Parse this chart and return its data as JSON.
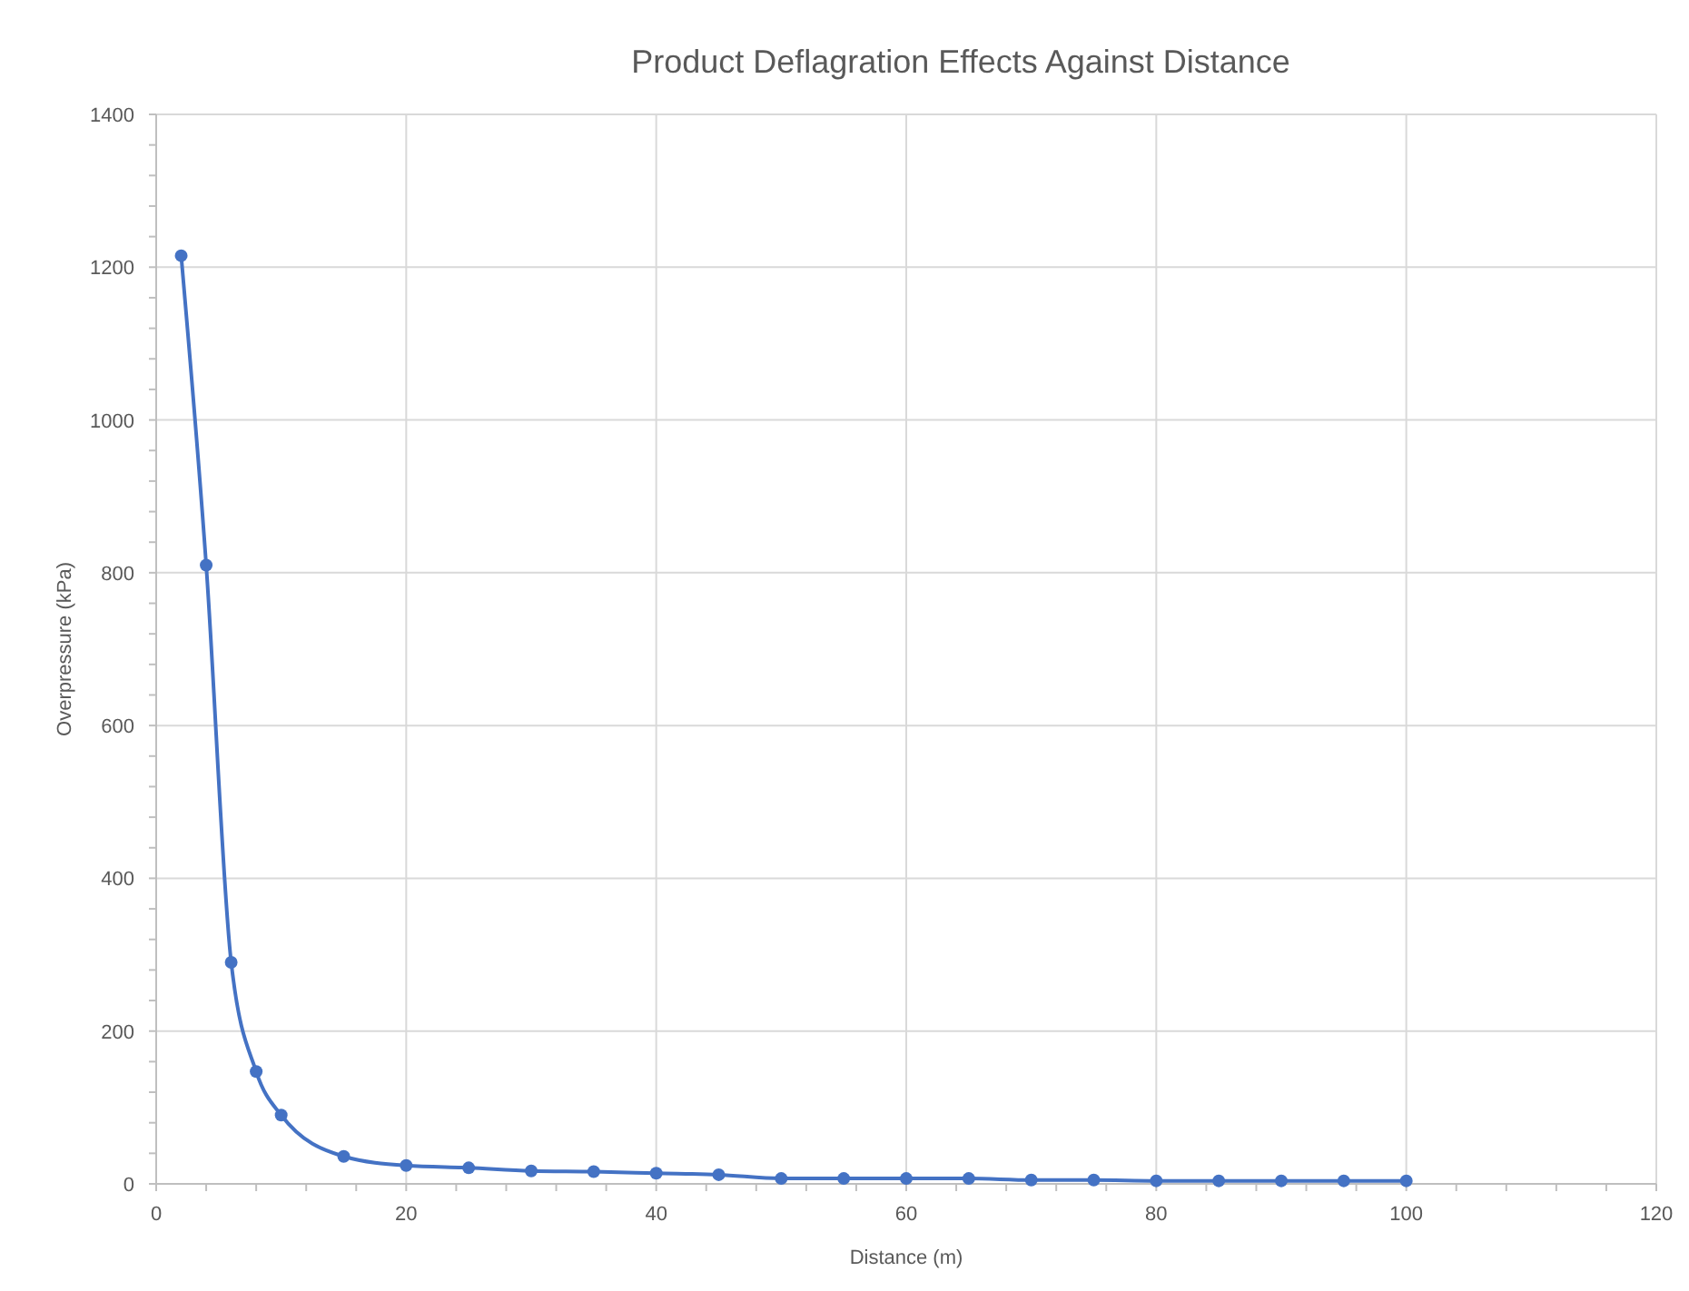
{
  "chart_data": {
    "type": "line",
    "title": "Product Deflagration Effects Against Distance",
    "xlabel": "Distance (m)",
    "ylabel": "Overpressure (kPa)",
    "x": [
      2,
      4,
      6,
      8,
      10,
      15,
      20,
      25,
      30,
      35,
      40,
      45,
      50,
      55,
      60,
      65,
      70,
      75,
      80,
      85,
      90,
      95,
      100
    ],
    "series": [
      {
        "color": "#4472c4",
        "values": [
          1215,
          810,
          290,
          147,
          90,
          36,
          24,
          21,
          17,
          16,
          14,
          12,
          7,
          7,
          7,
          7,
          5,
          5,
          4,
          4,
          4,
          4,
          4
        ]
      }
    ],
    "xlim": [
      0,
      120
    ],
    "xticks": [
      0,
      20,
      40,
      60,
      80,
      100,
      120
    ],
    "ylim": [
      0,
      1400
    ],
    "yticks": [
      0,
      200,
      400,
      600,
      800,
      1000,
      1200,
      1400
    ],
    "grid": true,
    "marker": "circle",
    "line_style": "solid"
  }
}
